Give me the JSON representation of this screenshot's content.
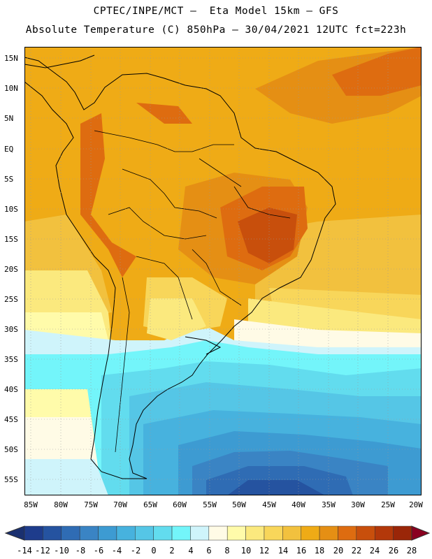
{
  "title_line1": "CPTEC/INPE/MCT –  Eta Model 15km – GFS",
  "title_line2": "Absolute Temperature (C) 850hPa – 30/04/2021 12UTC fct=223h",
  "lat_labels": [
    "15N",
    "10N",
    "5N",
    "EQ",
    "5S",
    "10S",
    "15S",
    "20S",
    "25S",
    "30S",
    "35S",
    "40S",
    "45S",
    "50S",
    "55S"
  ],
  "lon_labels": [
    "85W",
    "80W",
    "75W",
    "70W",
    "65W",
    "60W",
    "55W",
    "50W",
    "45W",
    "40W",
    "35W",
    "30W",
    "25W",
    "20W"
  ],
  "colorbar": {
    "labels": [
      "-14",
      "-12",
      "-10",
      "-8",
      "-6",
      "-4",
      "-2",
      "0",
      "2",
      "4",
      "6",
      "8",
      "10",
      "12",
      "14",
      "16",
      "18",
      "20",
      "22",
      "24",
      "26",
      "28"
    ],
    "colors": [
      "#1e3c8c",
      "#2553a0",
      "#2f6cb4",
      "#3a84c4",
      "#3d9bd2",
      "#47b2de",
      "#55c6e6",
      "#62dcee",
      "#73f5fa",
      "#cff4fb",
      "#fffbe6",
      "#fffbaa",
      "#fbe97e",
      "#f8d65a",
      "#f2c13e",
      "#efab16",
      "#e58f14",
      "#de6c10",
      "#c84f0c",
      "#b3380a",
      "#9a2608",
      "#7a1c07"
    ],
    "under_color": "#1a3070",
    "over_color": "#8a0020"
  },
  "map": {
    "extent_lon": [
      -85,
      -20
    ],
    "extent_lat": [
      -58,
      16
    ],
    "variable": "Absolute Temperature (C) 850hPa"
  }
}
